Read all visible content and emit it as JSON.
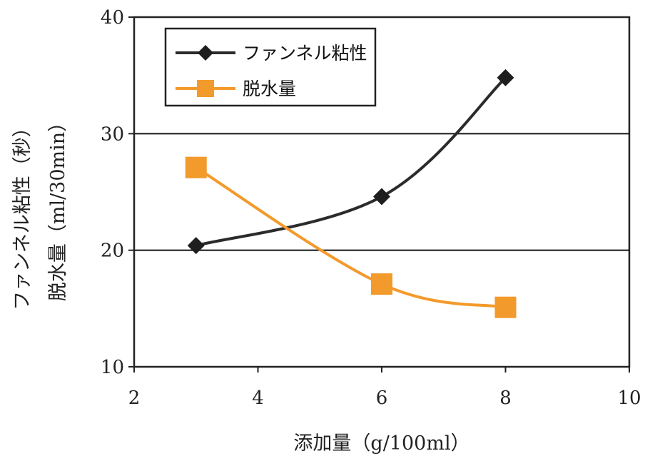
{
  "chart_data": {
    "type": "line",
    "xlabel": "添加量（g/100ml）",
    "ylabel_line1": "ファンネル粘性（秒）",
    "ylabel_line2": "脱水量（ml/30min）",
    "xlim": [
      2,
      10
    ],
    "ylim": [
      10,
      40
    ],
    "xticks": [
      "2",
      "4",
      "6",
      "8",
      "10"
    ],
    "yticks": [
      "10",
      "20",
      "30",
      "40"
    ],
    "grid": "horizontal at 20 and 30",
    "legend_position": "top-left",
    "series": [
      {
        "name": "ファンネル粘性",
        "marker": "diamond",
        "color": "#2b2b2b",
        "x": [
          3,
          6,
          8
        ],
        "y": [
          20.4,
          24.6,
          34.8
        ]
      },
      {
        "name": "脱水量",
        "marker": "square",
        "color": "#f39a2c",
        "x": [
          3,
          6,
          8
        ],
        "y": [
          27.1,
          17.1,
          15.1
        ]
      }
    ]
  }
}
